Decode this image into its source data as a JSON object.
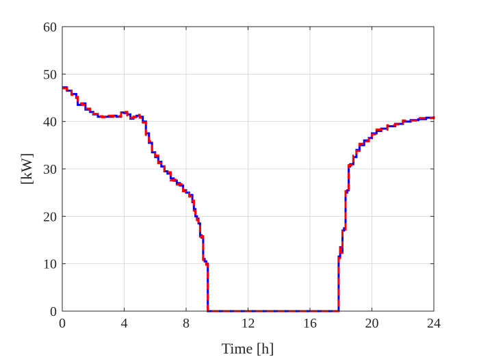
{
  "chart_data": {
    "type": "line",
    "title": "",
    "xlabel": "Time [h]",
    "ylabel": "[kW]",
    "xlim": [
      0,
      24
    ],
    "ylim": [
      0,
      60
    ],
    "x_ticks": [
      0,
      4,
      8,
      12,
      16,
      20,
      24
    ],
    "y_ticks": [
      0,
      10,
      20,
      30,
      40,
      50,
      60
    ],
    "grid": true,
    "legend": "none",
    "series": [
      {
        "color": "#0000ff",
        "style": "solid",
        "x": [
          0,
          0.3,
          0.6,
          0.9,
          1.0,
          1.3,
          1.5,
          1.8,
          2.0,
          2.3,
          2.6,
          3.0,
          3.3,
          3.5,
          3.8,
          4.0,
          4.2,
          4.4,
          4.6,
          4.8,
          5.0,
          5.2,
          5.4,
          5.6,
          5.8,
          6.0,
          6.2,
          6.4,
          6.6,
          6.8,
          7.0,
          7.2,
          7.4,
          7.6,
          7.8,
          8.0,
          8.2,
          8.4,
          8.5,
          8.6,
          8.7,
          8.8,
          8.9,
          9.0,
          9.1,
          9.2,
          9.3,
          9.4,
          9.5,
          9.6,
          10,
          12,
          14,
          16,
          17.5,
          17.8,
          17.85,
          17.95,
          18.0,
          18.1,
          18.2,
          18.3,
          18.4,
          18.5,
          18.6,
          18.8,
          19.0,
          19.2,
          19.5,
          19.8,
          20.0,
          20.3,
          20.6,
          21.0,
          21.5,
          22.0,
          22.5,
          23.0,
          23.5,
          24.0
        ],
        "y": [
          47.2,
          46.5,
          45.8,
          45.0,
          43.5,
          43.8,
          42.5,
          42.0,
          41.5,
          41.0,
          41.0,
          41.0,
          41.2,
          41.0,
          41.9,
          41.8,
          41.5,
          40.6,
          41.0,
          41.2,
          41.0,
          40.0,
          37.5,
          35.5,
          33.5,
          32.5,
          31.5,
          30.5,
          29.5,
          29.0,
          28.0,
          27.5,
          27.0,
          26.5,
          25.5,
          25.0,
          24.5,
          23.0,
          21.5,
          20.0,
          19.5,
          18.5,
          16.0,
          15.5,
          11.0,
          10.5,
          10.0,
          0,
          0,
          0,
          0,
          0,
          0,
          0,
          0,
          0,
          11.5,
          13.5,
          12.5,
          17.0,
          17.5,
          25.0,
          25.5,
          30.5,
          31.0,
          32.5,
          34.0,
          35.0,
          36.0,
          36.5,
          37.5,
          38.0,
          38.5,
          39.0,
          39.5,
          40.0,
          40.3,
          40.5,
          40.8,
          41.0
        ]
      },
      {
        "color": "#ff0000",
        "style": "dashed",
        "x": [
          0,
          0.3,
          0.6,
          0.9,
          1.0,
          1.3,
          1.5,
          1.8,
          2.0,
          2.3,
          2.6,
          3.0,
          3.3,
          3.5,
          3.8,
          4.0,
          4.2,
          4.4,
          4.6,
          4.8,
          5.0,
          5.2,
          5.4,
          5.6,
          5.8,
          6.0,
          6.2,
          6.4,
          6.6,
          6.8,
          7.0,
          7.2,
          7.4,
          7.6,
          7.8,
          8.0,
          8.2,
          8.4,
          8.5,
          8.6,
          8.7,
          8.8,
          8.9,
          9.0,
          9.1,
          9.2,
          9.3,
          9.4,
          9.5,
          9.6,
          10,
          12,
          14,
          16,
          17.5,
          17.8,
          17.85,
          17.95,
          18.0,
          18.1,
          18.2,
          18.3,
          18.4,
          18.5,
          18.6,
          18.8,
          19.0,
          19.2,
          19.5,
          19.8,
          20.0,
          20.3,
          20.6,
          21.0,
          21.5,
          22.0,
          22.5,
          23.0,
          23.5,
          24.0
        ],
        "y": [
          47.0,
          46.7,
          45.6,
          45.2,
          43.8,
          43.5,
          42.7,
          41.8,
          41.6,
          41.1,
          40.9,
          41.2,
          41.0,
          41.1,
          41.8,
          42.0,
          41.3,
          40.8,
          40.9,
          41.4,
          40.8,
          39.8,
          37.2,
          35.8,
          33.2,
          32.8,
          31.2,
          30.8,
          29.2,
          29.3,
          27.6,
          27.7,
          26.7,
          26.8,
          25.3,
          25.2,
          24.2,
          23.3,
          21.2,
          20.3,
          19.2,
          18.8,
          15.7,
          15.8,
          10.8,
          10.7,
          9.8,
          0,
          0,
          0,
          0,
          0,
          0,
          0,
          0,
          0,
          11.2,
          13.8,
          12.3,
          17.3,
          17.2,
          25.3,
          25.2,
          30.8,
          30.8,
          32.8,
          33.8,
          35.3,
          35.8,
          36.8,
          37.3,
          38.3,
          38.3,
          39.2,
          39.4,
          40.2,
          40.2,
          40.7,
          40.7,
          41.1
        ]
      }
    ]
  }
}
